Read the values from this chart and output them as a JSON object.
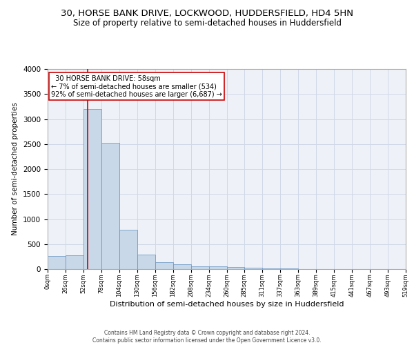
{
  "title": "30, HORSE BANK DRIVE, LOCKWOOD, HUDDERSFIELD, HD4 5HN",
  "subtitle": "Size of property relative to semi-detached houses in Huddersfield",
  "xlabel": "Distribution of semi-detached houses by size in Huddersfield",
  "ylabel": "Number of semi-detached properties",
  "footer1": "Contains HM Land Registry data © Crown copyright and database right 2024.",
  "footer2": "Contains public sector information licensed under the Open Government Licence v3.0.",
  "bin_labels": [
    "0sqm",
    "26sqm",
    "52sqm",
    "78sqm",
    "104sqm",
    "130sqm",
    "156sqm",
    "182sqm",
    "208sqm",
    "234sqm",
    "260sqm",
    "285sqm",
    "311sqm",
    "337sqm",
    "363sqm",
    "389sqm",
    "415sqm",
    "441sqm",
    "467sqm",
    "493sqm",
    "519sqm"
  ],
  "bin_edges": [
    0,
    26,
    52,
    78,
    104,
    130,
    156,
    182,
    208,
    234,
    260,
    285,
    311,
    337,
    363,
    389,
    415,
    441,
    467,
    493,
    519
  ],
  "bar_heights": [
    260,
    270,
    3200,
    2520,
    780,
    290,
    140,
    90,
    60,
    50,
    40,
    30,
    20,
    8,
    5,
    4,
    3,
    2,
    2,
    1
  ],
  "bar_color": "#c8d8e8",
  "bar_edge_color": "#6090c0",
  "subject_value": 58,
  "subject_label": "30 HORSE BANK DRIVE: 58sqm",
  "pct_smaller": 7,
  "pct_smaller_count": 534,
  "pct_larger": 92,
  "pct_larger_count": 6687,
  "vline_color": "#cc0000",
  "annotation_box_color": "#cc0000",
  "ylim": [
    0,
    4000
  ],
  "yticks": [
    0,
    500,
    1000,
    1500,
    2000,
    2500,
    3000,
    3500,
    4000
  ],
  "grid_color": "#d0d8e8",
  "bg_color": "#eef2f8",
  "title_fontsize": 9.5,
  "subtitle_fontsize": 8.5,
  "annotation_fontsize": 7,
  "ylabel_fontsize": 7.5,
  "xlabel_fontsize": 8,
  "ytick_fontsize": 7.5,
  "xtick_fontsize": 6,
  "footer_fontsize": 5.5
}
